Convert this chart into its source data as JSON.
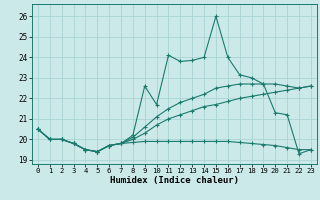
{
  "title": "",
  "xlabel": "Humidex (Indice chaleur)",
  "xlim": [
    -0.5,
    23.5
  ],
  "ylim": [
    18.8,
    26.6
  ],
  "yticks": [
    19,
    20,
    21,
    22,
    23,
    24,
    25,
    26
  ],
  "xticks": [
    0,
    1,
    2,
    3,
    4,
    5,
    6,
    7,
    8,
    9,
    10,
    11,
    12,
    13,
    14,
    15,
    16,
    17,
    18,
    19,
    20,
    21,
    22,
    23
  ],
  "background_color": "#cce9e9",
  "grid_color": "#aad4d4",
  "line_color": "#1a7a6e",
  "series": [
    [
      20.5,
      20.0,
      20.0,
      19.8,
      19.5,
      19.4,
      19.7,
      19.8,
      19.85,
      19.9,
      19.9,
      19.9,
      19.9,
      19.9,
      19.9,
      19.9,
      19.9,
      19.85,
      19.8,
      19.75,
      19.7,
      19.6,
      19.5,
      19.5
    ],
    [
      20.5,
      20.0,
      20.0,
      19.8,
      19.5,
      19.4,
      19.7,
      19.8,
      20.0,
      20.3,
      20.7,
      21.0,
      21.2,
      21.4,
      21.6,
      21.7,
      21.85,
      22.0,
      22.1,
      22.2,
      22.3,
      22.4,
      22.5,
      22.6
    ],
    [
      20.5,
      20.0,
      20.0,
      19.8,
      19.5,
      19.4,
      19.7,
      19.8,
      20.1,
      20.6,
      21.1,
      21.5,
      21.8,
      22.0,
      22.2,
      22.5,
      22.6,
      22.7,
      22.7,
      22.7,
      22.7,
      22.6,
      22.5,
      22.6
    ],
    [
      20.5,
      20.0,
      20.0,
      19.8,
      19.5,
      19.4,
      19.7,
      19.8,
      20.2,
      22.6,
      21.7,
      24.1,
      23.8,
      23.85,
      24.0,
      26.0,
      24.0,
      23.15,
      23.0,
      22.7,
      21.3,
      21.2,
      19.3,
      19.5
    ]
  ]
}
